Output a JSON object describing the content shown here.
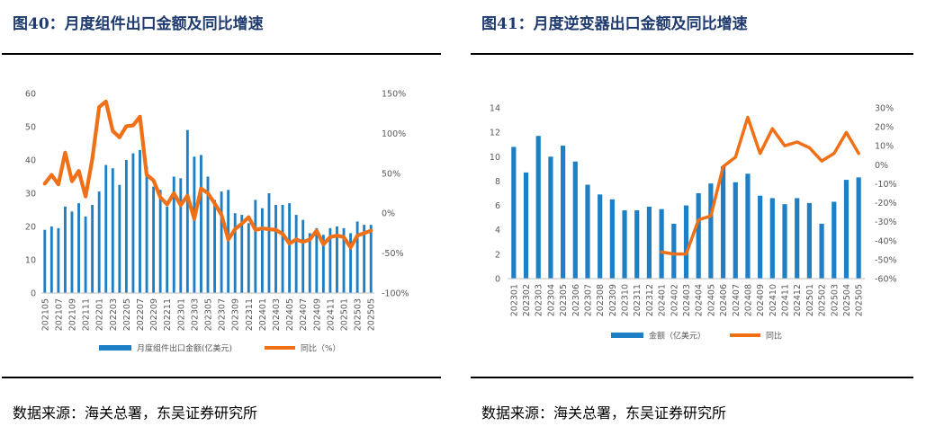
{
  "figures": [
    {
      "title": "图40：月度组件出口金额及同比增速",
      "source": "数据来源：海关总署，东吴证券研究所",
      "chart_data": {
        "type": "bar",
        "categories": [
          "202105",
          "202106",
          "202107",
          "202108",
          "202109",
          "202110",
          "202111",
          "202112",
          "202201",
          "202202",
          "202203",
          "202204",
          "202205",
          "202206",
          "202207",
          "202208",
          "202209",
          "202210",
          "202211",
          "202212",
          "202301",
          "202302",
          "202303",
          "202304",
          "202305",
          "202306",
          "202307",
          "202308",
          "202309",
          "202310",
          "202311",
          "202312",
          "202401",
          "202402",
          "202403",
          "202404",
          "202405",
          "202406",
          "202407",
          "202408",
          "202409",
          "202410",
          "202411",
          "202412",
          "202501",
          "202502",
          "202503",
          "202504",
          "202505"
        ],
        "tick_labels": [
          "202105",
          "202107",
          "202109",
          "202111",
          "202201",
          "202203",
          "202205",
          "202207",
          "202209",
          "202211",
          "202301",
          "202303",
          "202305",
          "202307",
          "202309",
          "202311",
          "202401",
          "202403",
          "202405",
          "202407",
          "202409",
          "202411",
          "202501",
          "202503",
          "202505"
        ],
        "series": [
          {
            "name": "月度组件出口金额(亿美元)",
            "kind": "bar",
            "axis": "left",
            "color": "#1f7fc4",
            "values": [
              19,
              20,
              19.5,
              26,
              24.5,
              27,
              23,
              26.5,
              30.5,
              38.5,
              37.5,
              32.5,
              40,
              42,
              43,
              38,
              32,
              31,
              26,
              35,
              34.5,
              49,
              41,
              41.5,
              35,
              28,
              30.5,
              31,
              24,
              23.5,
              21,
              28,
              25.5,
              30,
              26.5,
              26.5,
              27,
              23.5,
              22,
              18,
              19.5,
              17.5,
              19.5,
              20,
              19.5,
              18,
              21.5,
              20.5,
              20.5
            ]
          },
          {
            "name": "同比（%）",
            "kind": "line",
            "axis": "right",
            "color": "#f07018",
            "values": [
              37,
              48,
              36,
              76,
              40,
              53,
              21,
              68,
              133,
              140,
              103,
              95,
              109,
              110,
              121,
              48,
              41,
              20,
              11,
              25,
              10,
              22,
              -7,
              31,
              25,
              12,
              -2,
              -33,
              -20,
              -13,
              -5,
              -21,
              -19,
              -20,
              -21,
              -26,
              -38,
              -33,
              -36,
              -33,
              -22,
              -39,
              -30,
              -28,
              -30,
              -43,
              -28,
              -25,
              -22
            ]
          }
        ],
        "y_left": {
          "min": 0,
          "max": 60,
          "step": 10,
          "ticks": [
            "0",
            "10",
            "20",
            "30",
            "40",
            "50",
            "60"
          ]
        },
        "y_right": {
          "min": -100,
          "max": 150,
          "step": 50,
          "ticks": [
            "-100%",
            "-50%",
            "0%",
            "50%",
            "100%",
            "150%"
          ]
        },
        "grid": false,
        "legend_position": "bottom"
      }
    },
    {
      "title": "图41：月度逆变器出口金额及同比增速",
      "source": "数据来源：海关总署，东吴证券研究所",
      "chart_data": {
        "type": "bar",
        "categories": [
          "202301",
          "202302",
          "202303",
          "202304",
          "202305",
          "202306",
          "202307",
          "202308",
          "202309",
          "202310",
          "202311",
          "202312",
          "202401",
          "202402",
          "202403",
          "202404",
          "202405",
          "202406",
          "202407",
          "202408",
          "202409",
          "202410",
          "202411",
          "202412",
          "202501",
          "202502",
          "202503",
          "202504",
          "202505"
        ],
        "tick_labels": [
          "202301",
          "202302",
          "202303",
          "202304",
          "202305",
          "202306",
          "202307",
          "202308",
          "202309",
          "202310",
          "202311",
          "202312",
          "202401",
          "202402",
          "202403",
          "202404",
          "202405",
          "202406",
          "202407",
          "202408",
          "202409",
          "202410",
          "202411",
          "202412",
          "202501",
          "202502",
          "202503",
          "202504",
          "202505"
        ],
        "series": [
          {
            "name": "金额（亿美元）",
            "kind": "bar",
            "axis": "left",
            "color": "#1f7fc4",
            "values": [
              10.8,
              8.7,
              11.7,
              10,
              10.9,
              9.6,
              7.7,
              6.9,
              6.5,
              5.6,
              5.6,
              5.9,
              5.7,
              4.5,
              6,
              7,
              7.8,
              9.2,
              7.9,
              8.6,
              6.8,
              6.6,
              6.1,
              6.6,
              6.2,
              4.5,
              6.3,
              8.1,
              8.3
            ]
          },
          {
            "name": "同比",
            "kind": "line",
            "axis": "right",
            "color": "#f07018",
            "values": [
              null,
              null,
              null,
              null,
              null,
              null,
              null,
              null,
              null,
              null,
              null,
              null,
              -46,
              -47,
              -47,
              -29,
              -27,
              -1,
              4,
              25,
              6,
              19,
              10,
              12,
              9,
              2,
              6,
              17,
              6
            ]
          }
        ],
        "y_left": {
          "min": 0,
          "max": 14,
          "step": 2,
          "ticks": [
            "0",
            "2",
            "4",
            "6",
            "8",
            "10",
            "12",
            "14"
          ]
        },
        "y_right": {
          "min": -60,
          "max": 30,
          "step": 10,
          "ticks": [
            "-60%",
            "-50%",
            "-40%",
            "-30%",
            "-20%",
            "-10%",
            "0%",
            "10%",
            "20%",
            "30%"
          ]
        },
        "grid": false,
        "legend_position": "bottom"
      }
    }
  ]
}
